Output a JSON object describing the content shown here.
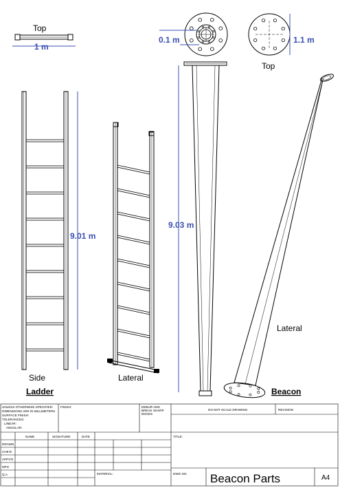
{
  "views": {
    "ladder_top": {
      "label": "Top",
      "dim": "1 m"
    },
    "ladder_side": {
      "label": "Side",
      "dim": "9.01 m"
    },
    "ladder_lateral": {
      "label": "Lateral"
    },
    "ladder_group": {
      "label": "Ladder"
    },
    "beacon_top": {
      "label": "Top",
      "dim_left": "0.1 m",
      "dim_right": "1.1 m"
    },
    "beacon_side": {
      "dim": "9.03 m"
    },
    "beacon_lateral": {
      "label": "Lateral"
    },
    "beacon_group": {
      "label": "Beacon"
    }
  },
  "title_block": {
    "notes": [
      "UNLESS OTHERWISE SPECIFIED:",
      "DIMENSIONS ARE IN MILLIMETERS",
      "SURFACE FINISH:",
      "TOLERANCES:",
      "LINEAR:",
      "ANGULAR:"
    ],
    "finish": "FINISH:",
    "deburr": [
      "DEBUR AND",
      "BREAK SHARP",
      "EDGES"
    ],
    "do_not_scale": "DO NOT SCALE DRAWING",
    "revision": "REVISION",
    "col_name": "NAME",
    "col_signature": "SIGNATURE",
    "col_date": "DATE",
    "rows": [
      "DRAWN",
      "CHK'D",
      "APPV'D",
      "MFG",
      "Q.A"
    ],
    "title_label": "TITLE:",
    "material": "MATERIAL:",
    "dwg_no": "DWG NO.",
    "drawing_title": "Beacon Parts",
    "sheet_size": "A4"
  }
}
